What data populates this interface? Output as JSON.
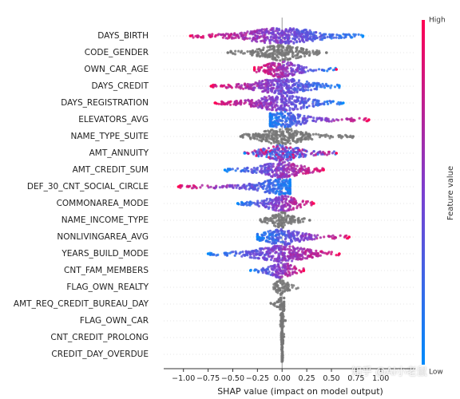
{
  "chart_data": {
    "type": "scatter",
    "subtype": "shap-beeswarm",
    "xlabel": "SHAP value (impact on model output)",
    "xlim": [
      -1.2,
      1.35
    ],
    "xticks": [
      -1.0,
      -0.75,
      -0.5,
      -0.25,
      0.0,
      0.25,
      0.5,
      0.75,
      1.0
    ],
    "xtick_labels": [
      "−1.00",
      "−0.75",
      "−0.50",
      "−0.25",
      "0.00",
      "0.25",
      "0.50",
      "0.75",
      "1.00"
    ],
    "colorbar": {
      "label": "Feature value",
      "high_label": "High",
      "low_label": "Low",
      "high_color": "#ff0052",
      "low_color": "#008bfb",
      "neutral_color": "#777777"
    },
    "features": [
      {
        "name": "DAYS_BIRTH",
        "range": [
          -0.93,
          0.82
        ],
        "mode": "low_right"
      },
      {
        "name": "CODE_GENDER",
        "range": [
          -0.55,
          0.45
        ],
        "mode": "gray"
      },
      {
        "name": "OWN_CAR_AGE",
        "range": [
          -0.28,
          0.55
        ],
        "mode": "high_left"
      },
      {
        "name": "DAYS_CREDIT",
        "range": [
          -0.72,
          0.58
        ],
        "mode": "low_right"
      },
      {
        "name": "DAYS_REGISTRATION",
        "range": [
          -0.68,
          0.62
        ],
        "mode": "low_right"
      },
      {
        "name": "ELEVATORS_AVG",
        "range": [
          -0.12,
          0.88
        ],
        "mode": "high_right"
      },
      {
        "name": "NAME_TYPE_SUITE",
        "range": [
          -0.42,
          0.72
        ],
        "mode": "gray"
      },
      {
        "name": "AMT_ANNUITY",
        "range": [
          -0.38,
          0.55
        ],
        "mode": "mixed"
      },
      {
        "name": "AMT_CREDIT_SUM",
        "range": [
          -0.58,
          0.42
        ],
        "mode": "high_right"
      },
      {
        "name": "DEF_30_CNT_SOCIAL_CIRCLE",
        "range": [
          -1.05,
          0.08
        ],
        "mode": "high_left"
      },
      {
        "name": "COMMONAREA_MODE",
        "range": [
          -0.45,
          0.32
        ],
        "mode": "high_right"
      },
      {
        "name": "NAME_INCOME_TYPE",
        "range": [
          -0.22,
          0.28
        ],
        "mode": "gray"
      },
      {
        "name": "NONLIVINGAREA_AVG",
        "range": [
          -0.25,
          0.68
        ],
        "mode": "high_right"
      },
      {
        "name": "YEARS_BUILD_MODE",
        "range": [
          -0.75,
          0.58
        ],
        "mode": "low_left"
      },
      {
        "name": "CNT_FAM_MEMBERS",
        "range": [
          -0.32,
          0.22
        ],
        "mode": "high_right"
      },
      {
        "name": "FLAG_OWN_REALTY",
        "range": [
          -0.1,
          0.18
        ],
        "mode": "gray"
      },
      {
        "name": "AMT_REQ_CREDIT_BUREAU_DAY",
        "range": [
          -0.12,
          0.02
        ],
        "mode": "gray"
      },
      {
        "name": "FLAG_OWN_CAR",
        "range": [
          -0.02,
          0.04
        ],
        "mode": "gray"
      },
      {
        "name": "CNT_CREDIT_PROLONG",
        "range": [
          -0.01,
          0.02
        ],
        "mode": "gray"
      },
      {
        "name": "CREDIT_DAY_OVERDUE",
        "range": [
          -0.01,
          0.01
        ],
        "mode": "gray"
      }
    ]
  },
  "watermark": "知乎 @AI小老鼠"
}
